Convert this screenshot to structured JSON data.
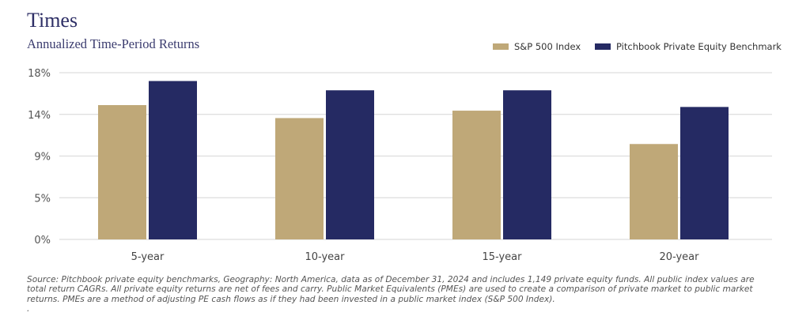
{
  "header": {
    "title": "Times",
    "subtitle": "Annualized Time-Period Returns"
  },
  "colors": {
    "sp500": "#bfa878",
    "pitchbook": "#252a63",
    "grid": "#dddddd"
  },
  "chart_data": {
    "type": "bar",
    "title": "Times",
    "subtitle": "Annualized Time-Period Returns",
    "xlabel": "",
    "ylabel": "",
    "categories": [
      "5-year",
      "10-year",
      "15-year",
      "20-year"
    ],
    "series": [
      {
        "name": "S&P 500 Index",
        "values": [
          14.5,
          13.1,
          13.9,
          10.3
        ]
      },
      {
        "name": "Pitchbook Private Equity Benchmark",
        "values": [
          17.1,
          16.1,
          16.1,
          14.3
        ]
      }
    ],
    "yticks": [
      0,
      4.5,
      9,
      13.5,
      18
    ],
    "ytick_labels": [
      "0%",
      "5%",
      "9%",
      "14%",
      "18%"
    ],
    "ylim": [
      0,
      18
    ],
    "grid": true,
    "legend_position": "top-right"
  },
  "footnote": {
    "lines": [
      "Source: Pitchbook private equity benchmarks, Geography: North America, data as of December 31, 2024 and includes 1,149 private equity funds. All public index values are",
      "total return CAGRs. All private equity returns are net of fees and carry. Public Market Equivalents (PMEs) are used to create a comparison of private market to public market",
      "returns. PMEs are a method of adjusting PE cash flows as if they had been invested in a public market index (S&P 500 Index).",
      "."
    ]
  }
}
